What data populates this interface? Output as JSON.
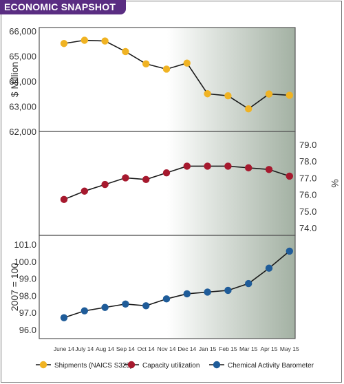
{
  "header": {
    "title": "ECONOMIC SNAPSHOT"
  },
  "colors": {
    "title_bg": "#5a2d82",
    "shipments": "#f0b323",
    "capacity": "#a6192e",
    "cab": "#1f5c99",
    "line": "#1a1a1a",
    "panel_gradient_start": "#ffffff",
    "panel_gradient_end": "#a3b1a3"
  },
  "chart_data": {
    "type": "line",
    "categories": [
      "June 14",
      "July 14",
      "Aug 14",
      "Sep 14",
      "Oct 14",
      "Nov 14",
      "Dec 14",
      "Jan 15",
      "Feb 15",
      "Mar 15",
      "Apr 15",
      "May 15"
    ],
    "panels": [
      {
        "ylabel": "$ Million",
        "ylabel_side": "left",
        "ylim": [
          62000,
          66000
        ],
        "ticks": [
          62000,
          63000,
          64000,
          65000,
          66000
        ],
        "tick_labels": [
          "62,000",
          "63,000",
          "64,000",
          "65,000",
          "66,000"
        ],
        "series": [
          {
            "name": "Shipments (NAICS S325)",
            "color": "#f0b323",
            "values": [
              65500,
              65630,
              65600,
              65180,
              64690,
              64480,
              64720,
              63500,
              63420,
              62900,
              63490,
              63440
            ]
          }
        ]
      },
      {
        "ylabel": "%",
        "ylabel_side": "right",
        "ylim": [
          73.5,
          79.5
        ],
        "ticks": [
          74.0,
          75.0,
          76.0,
          77.0,
          78.0,
          79.0
        ],
        "tick_labels": [
          "74.0",
          "75.0",
          "76.0",
          "77.0",
          "78.0",
          "79.0"
        ],
        "series": [
          {
            "name": "Capacity utilization",
            "color": "#a6192e",
            "values": [
              75.7,
              76.2,
              76.6,
              77.0,
              76.9,
              77.3,
              77.7,
              77.7,
              77.7,
              77.6,
              77.5,
              77.1
            ]
          }
        ]
      },
      {
        "ylabel": "2007 = 100",
        "ylabel_side": "left",
        "ylim": [
          95.5,
          101.5
        ],
        "ticks": [
          96.0,
          97.0,
          98.0,
          99.0,
          100.0,
          101.0
        ],
        "tick_labels": [
          "96.0",
          "97.0",
          "98.0",
          "99.0",
          "100.0",
          "101.0"
        ],
        "series": [
          {
            "name": "Chemical Activity Barometer",
            "color": "#1f5c99",
            "values": [
              96.7,
              97.1,
              97.3,
              97.5,
              97.4,
              97.8,
              98.1,
              98.2,
              98.3,
              98.7,
              99.6,
              100.6
            ]
          }
        ]
      }
    ],
    "legend": {
      "position": "bottom",
      "items": [
        {
          "label": "Shipments (NAICS S325)",
          "color": "#f0b323"
        },
        {
          "label": "Capacity utilization",
          "color": "#a6192e"
        },
        {
          "label": "Chemical Activity Barometer",
          "color": "#1f5c99"
        }
      ]
    },
    "grid": false
  }
}
